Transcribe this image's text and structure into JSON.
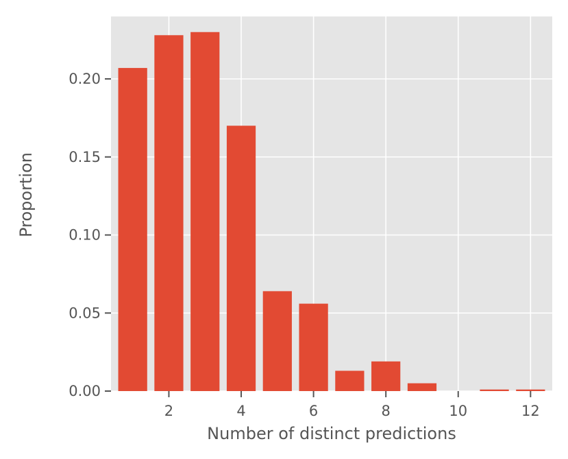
{
  "chart_data": {
    "type": "bar",
    "title": "",
    "xlabel": "Number of distinct predictions",
    "ylabel": "Proportion",
    "x": [
      1,
      2,
      3,
      4,
      5,
      6,
      7,
      8,
      9,
      10,
      11,
      12
    ],
    "values": [
      0.207,
      0.228,
      0.23,
      0.17,
      0.064,
      0.056,
      0.013,
      0.019,
      0.005,
      0.0,
      0.001,
      0.001
    ],
    "xlim": [
      0.4,
      12.6
    ],
    "ylim": [
      0,
      0.24
    ],
    "xticks": [
      2,
      4,
      6,
      8,
      10,
      12
    ],
    "xtick_labels": [
      "2",
      "4",
      "6",
      "8",
      "10",
      "12"
    ],
    "yticks": [
      0.0,
      0.05,
      0.1,
      0.15,
      0.2
    ],
    "ytick_labels": [
      "0.00",
      "0.05",
      "0.10",
      "0.15",
      "0.20"
    ],
    "grid": true,
    "style": "ggplot",
    "colors": {
      "bar": "#E24A33",
      "plot_background": "#E5E5E5",
      "grid": "#FFFFFF",
      "text": "#555555"
    }
  }
}
